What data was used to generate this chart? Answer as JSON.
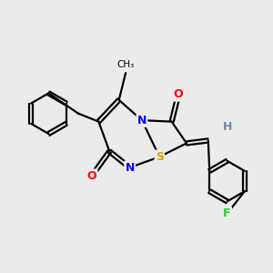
{
  "background_color": "#ebebeb",
  "bond_color": "#000000",
  "atom_colors": {
    "N": "#0000ff",
    "O": "#ff0000",
    "S": "#ccaa00",
    "F": "#33cc33",
    "H": "#778899",
    "C": "#000000"
  },
  "font_size_atoms": 9,
  "figsize": [
    3.0,
    3.0
  ],
  "dpi": 100
}
